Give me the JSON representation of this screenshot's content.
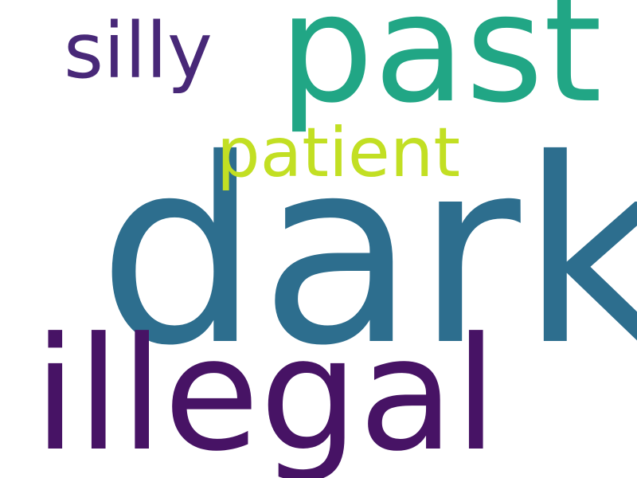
{
  "words": [
    {
      "text": "dark",
      "color": "#2d6e8e"
    },
    {
      "text": "illegal",
      "color": "#471365"
    },
    {
      "text": "past",
      "color": "#21a685"
    },
    {
      "text": "silly",
      "color": "#482878"
    },
    {
      "text": "patient",
      "color": "#c2df23"
    }
  ]
}
